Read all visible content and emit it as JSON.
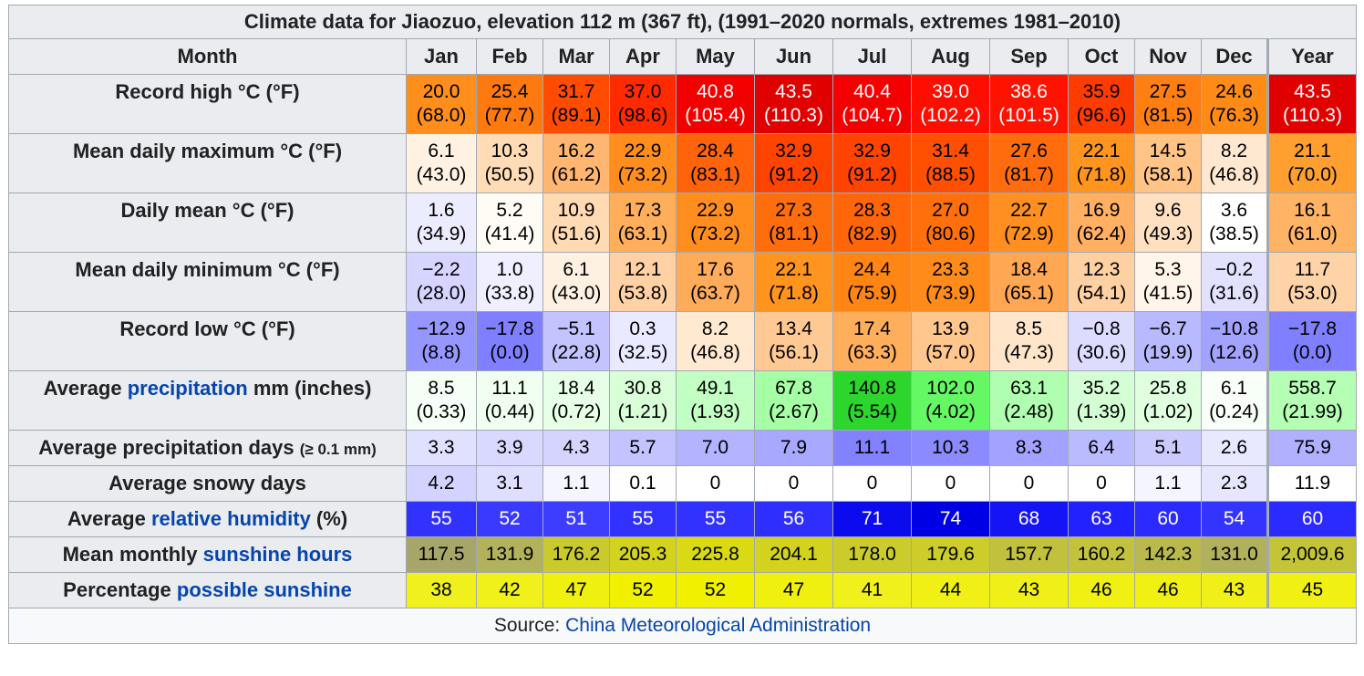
{
  "title": "Climate data for Jiaozuo, elevation 112 m (367 ft), (1991–2020 normals, extremes 1981–2010)",
  "header": {
    "month_label": "Month",
    "months": [
      "Jan",
      "Feb",
      "Mar",
      "Apr",
      "May",
      "Jun",
      "Jul",
      "Aug",
      "Sep",
      "Oct",
      "Nov",
      "Dec"
    ],
    "year_label": "Year"
  },
  "rows": {
    "record_high": {
      "label": "Record high °C (°F)",
      "c": [
        "20.0",
        "25.4",
        "31.7",
        "37.0",
        "40.8",
        "43.5",
        "40.4",
        "39.0",
        "38.6",
        "35.9",
        "27.5",
        "24.6",
        "43.5"
      ],
      "f": [
        "(68.0)",
        "(77.7)",
        "(89.1)",
        "(98.6)",
        "(105.4)",
        "(110.3)",
        "(104.7)",
        "(102.2)",
        "(101.5)",
        "(96.6)",
        "(81.5)",
        "(76.3)",
        "(110.3)"
      ],
      "colors": [
        "#ff8e1c",
        "#ff7a0e",
        "#ff4c00",
        "#ff2a00",
        "#f20000",
        "#e00000",
        "#f40000",
        "#fd0e00",
        "#ff1300",
        "#ff3c00",
        "#ff7f12",
        "#ff8b17",
        "#e00000"
      ],
      "text_colors": [
        "#000",
        "#000",
        "#000",
        "#000",
        "#fff",
        "#fff",
        "#fff",
        "#fff",
        "#fff",
        "#000",
        "#000",
        "#000",
        "#fff"
      ]
    },
    "mean_max": {
      "label": "Mean daily maximum °C (°F)",
      "c": [
        "6.1",
        "10.3",
        "16.2",
        "22.9",
        "28.4",
        "32.9",
        "32.9",
        "31.4",
        "27.6",
        "22.1",
        "14.5",
        "8.2",
        "21.1"
      ],
      "f": [
        "(43.0)",
        "(50.5)",
        "(61.2)",
        "(73.2)",
        "(83.1)",
        "(91.2)",
        "(91.2)",
        "(88.5)",
        "(81.7)",
        "(71.8)",
        "(58.1)",
        "(46.8)",
        "(70.0)"
      ],
      "colors": [
        "#fff2e3",
        "#ffdbb6",
        "#ffb670",
        "#ff8e1f",
        "#ff640a",
        "#ff4400",
        "#ff4400",
        "#ff4f00",
        "#ff6c0d",
        "#ff951f",
        "#ffc486",
        "#ffe8cf",
        "#ff9f30"
      ],
      "text_colors": [
        "#000",
        "#000",
        "#000",
        "#000",
        "#000",
        "#000",
        "#000",
        "#000",
        "#000",
        "#000",
        "#000",
        "#000",
        "#000"
      ]
    },
    "daily_mean": {
      "label": "Daily mean °C (°F)",
      "c": [
        "1.6",
        "5.2",
        "10.9",
        "17.3",
        "22.9",
        "27.3",
        "28.3",
        "27.0",
        "22.7",
        "16.9",
        "9.6",
        "3.6",
        "16.1"
      ],
      "f": [
        "(34.9)",
        "(41.4)",
        "(51.6)",
        "(63.1)",
        "(73.2)",
        "(81.1)",
        "(82.9)",
        "(80.6)",
        "(72.9)",
        "(62.4)",
        "(49.3)",
        "(38.5)",
        "(61.0)"
      ],
      "colors": [
        "#ececff",
        "#fffbf5",
        "#ffdab3",
        "#ffae5c",
        "#ff8e1f",
        "#ff6e0d",
        "#ff660a",
        "#ff700d",
        "#ff8f20",
        "#ffb062",
        "#ffe0c0",
        "#ffffff",
        "#ffb365"
      ],
      "text_colors": [
        "#000",
        "#000",
        "#000",
        "#000",
        "#000",
        "#000",
        "#000",
        "#000",
        "#000",
        "#000",
        "#000",
        "#000",
        "#000"
      ]
    },
    "mean_min": {
      "label": "Mean daily minimum °C (°F)",
      "c": [
        "−2.2",
        "1.0",
        "6.1",
        "12.1",
        "17.6",
        "22.1",
        "24.4",
        "23.3",
        "18.4",
        "12.3",
        "5.3",
        "−0.2",
        "11.7"
      ],
      "f": [
        "(28.0)",
        "(33.8)",
        "(43.0)",
        "(53.8)",
        "(63.7)",
        "(71.8)",
        "(75.9)",
        "(73.9)",
        "(65.1)",
        "(54.1)",
        "(41.5)",
        "(31.6)",
        "(53.0)"
      ],
      "colors": [
        "#d5d5ff",
        "#efefff",
        "#fff1e2",
        "#ffd1a4",
        "#ffac5a",
        "#ff951f",
        "#ff8615",
        "#ff8c1a",
        "#ffa753",
        "#ffd0a2",
        "#fff5ea",
        "#e2e2ff",
        "#ffd3a8"
      ],
      "text_colors": [
        "#000",
        "#000",
        "#000",
        "#000",
        "#000",
        "#000",
        "#000",
        "#000",
        "#000",
        "#000",
        "#000",
        "#000",
        "#000"
      ]
    },
    "record_low": {
      "label": "Record low °C (°F)",
      "c": [
        "−12.9",
        "−17.8",
        "−5.1",
        "0.3",
        "8.2",
        "13.4",
        "17.4",
        "13.9",
        "8.5",
        "−0.8",
        "−6.7",
        "−10.8",
        "−17.8"
      ],
      "f": [
        "(8.8)",
        "(0.0)",
        "(22.8)",
        "(32.5)",
        "(46.8)",
        "(56.1)",
        "(63.3)",
        "(57.0)",
        "(47.3)",
        "(30.6)",
        "(19.9)",
        "(12.6)",
        "(0.0)"
      ],
      "colors": [
        "#9696ff",
        "#7f7fff",
        "#c3c3ff",
        "#e9e9ff",
        "#ffe9d0",
        "#ffc994",
        "#ffae5c",
        "#ffc68e",
        "#ffe6cb",
        "#dcdcff",
        "#b9b9ff",
        "#a2a2ff",
        "#7f7fff"
      ],
      "text_colors": [
        "#000",
        "#000",
        "#000",
        "#000",
        "#000",
        "#000",
        "#000",
        "#000",
        "#000",
        "#000",
        "#000",
        "#000",
        "#000"
      ]
    },
    "precipitation": {
      "label_prefix": "Average ",
      "label_link": "precipitation",
      "label_suffix": " mm (inches)",
      "c": [
        "8.5",
        "11.1",
        "18.4",
        "30.8",
        "49.1",
        "67.8",
        "140.8",
        "102.0",
        "63.1",
        "35.2",
        "25.8",
        "6.1",
        "558.7"
      ],
      "f": [
        "(0.33)",
        "(0.44)",
        "(0.72)",
        "(1.21)",
        "(1.93)",
        "(2.67)",
        "(5.54)",
        "(4.02)",
        "(2.48)",
        "(1.39)",
        "(1.02)",
        "(0.24)",
        "(21.99)"
      ],
      "colors": [
        "#f5fff5",
        "#f1fff1",
        "#e7ffe7",
        "#d9ffd9",
        "#c2ffc2",
        "#a5ffa5",
        "#2cd62c",
        "#64f864",
        "#b0ffb0",
        "#d4ffd4",
        "#dfffdf",
        "#f8fff8",
        "#b4ffb4"
      ],
      "text_colors": [
        "#000",
        "#000",
        "#000",
        "#000",
        "#000",
        "#000",
        "#000",
        "#000",
        "#000",
        "#000",
        "#000",
        "#000",
        "#000"
      ]
    },
    "precip_days": {
      "label_main": "Average precipitation days ",
      "label_small": "(≥ 0.1 mm)",
      "values": [
        "3.3",
        "3.9",
        "4.3",
        "5.7",
        "7.0",
        "7.9",
        "11.1",
        "10.3",
        "8.3",
        "6.4",
        "5.1",
        "2.6",
        "75.9"
      ],
      "colors": [
        "#e0e0ff",
        "#d9d9ff",
        "#d4d4ff",
        "#c3c3ff",
        "#b3b3ff",
        "#a8a8ff",
        "#8282ff",
        "#8b8bff",
        "#a3a3ff",
        "#babaff",
        "#cacaff",
        "#e8e8ff",
        "#b0b0ff"
      ],
      "text_colors": [
        "#000",
        "#000",
        "#000",
        "#000",
        "#000",
        "#000",
        "#000",
        "#000",
        "#000",
        "#000",
        "#000",
        "#000",
        "#000"
      ]
    },
    "snowy_days": {
      "label": "Average snowy days",
      "values": [
        "4.2",
        "3.1",
        "1.1",
        "0.1",
        "0",
        "0",
        "0",
        "0",
        "0",
        "0",
        "1.1",
        "2.3",
        "11.9"
      ],
      "colors": [
        "#d3d3ff",
        "#dedeff",
        "#f5f5ff",
        "#fefeff",
        "#ffffff",
        "#ffffff",
        "#ffffff",
        "#ffffff",
        "#ffffff",
        "#ffffff",
        "#f5f5ff",
        "#e6e6ff",
        "#ffffff"
      ],
      "text_colors": [
        "#000",
        "#000",
        "#000",
        "#000",
        "#000",
        "#000",
        "#000",
        "#000",
        "#000",
        "#000",
        "#000",
        "#000",
        "#000"
      ]
    },
    "humidity": {
      "label_prefix": "Average ",
      "label_link": "relative humidity",
      "label_suffix": " (%)",
      "values": [
        "55",
        "52",
        "51",
        "55",
        "55",
        "56",
        "71",
        "74",
        "68",
        "63",
        "60",
        "54",
        "60"
      ],
      "colors": [
        "#3232ff",
        "#3a3aff",
        "#3d3dff",
        "#3232ff",
        "#3232ff",
        "#2e2eff",
        "#0b0bee",
        "#0000e5",
        "#1414f5",
        "#2222ff",
        "#2b2bff",
        "#3434ff",
        "#2b2bff"
      ],
      "text_colors": [
        "#fff",
        "#fff",
        "#fff",
        "#fff",
        "#fff",
        "#fff",
        "#fff",
        "#fff",
        "#fff",
        "#fff",
        "#fff",
        "#fff",
        "#fff"
      ]
    },
    "sunshine_hours": {
      "label_prefix": "Mean monthly ",
      "label_link": "sunshine hours",
      "label_suffix": "",
      "values": [
        "117.5",
        "131.9",
        "176.2",
        "205.3",
        "225.8",
        "204.1",
        "178.0",
        "179.6",
        "157.7",
        "160.2",
        "142.3",
        "131.0",
        "2,009.6"
      ],
      "colors": [
        "#a6a66a",
        "#b2b25c",
        "#caca2e",
        "#d3d31f",
        "#d9d914",
        "#d3d31f",
        "#cbcb2c",
        "#cccc2b",
        "#c1c13e",
        "#c2c23c",
        "#b9b94d",
        "#b1b15d",
        "#c4c439"
      ],
      "text_colors": [
        "#000",
        "#000",
        "#000",
        "#000",
        "#000",
        "#000",
        "#000",
        "#000",
        "#000",
        "#000",
        "#000",
        "#000",
        "#000"
      ]
    },
    "possible_sunshine": {
      "label_prefix": "Percentage ",
      "label_link": "possible sunshine",
      "label_suffix": "",
      "values": [
        "38",
        "42",
        "47",
        "52",
        "52",
        "47",
        "41",
        "44",
        "43",
        "46",
        "46",
        "43",
        "45"
      ],
      "colors": [
        "#f0f01e",
        "#f0f01a",
        "#f0f010",
        "#f0f000",
        "#f0f000",
        "#f0f010",
        "#f0f01c",
        "#f0f016",
        "#f0f018",
        "#f0f012",
        "#f0f012",
        "#f0f018",
        "#f0f014"
      ],
      "text_colors": [
        "#000",
        "#000",
        "#000",
        "#000",
        "#000",
        "#000",
        "#000",
        "#000",
        "#000",
        "#000",
        "#000",
        "#000",
        "#000"
      ]
    }
  },
  "source": {
    "prefix": "Source: ",
    "link": "China Meteorological Administration"
  },
  "colors": {
    "header_bg": "#eaecf0",
    "border": "#a2a9b1",
    "link": "#0645ad"
  }
}
